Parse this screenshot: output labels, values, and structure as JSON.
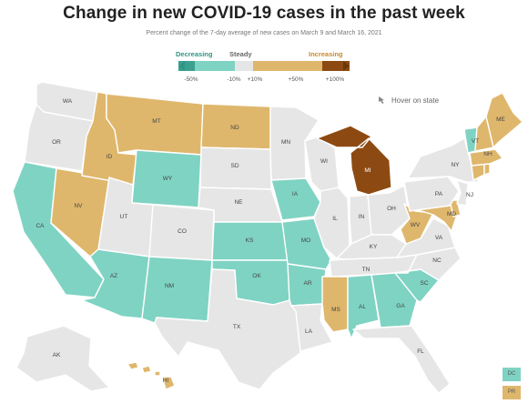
{
  "title": "Change in new COVID-19 cases in the past week",
  "subtitle": "Percent change of the 7-day average of new cases on March 9 and March 16, 2021",
  "legend": {
    "decreasing_label": "Decreasing",
    "steady_label": "Steady",
    "increasing_label": "Increasing",
    "ticks": [
      "-50%",
      "-10%",
      "+10%",
      "+50%",
      "+100%"
    ],
    "colors": {
      "strong_decrease": "#3aa191",
      "decrease": "#7fd3c3",
      "steady": "#e6e6e6",
      "increase": "#dfb76c",
      "strong_increase": "#8c4a12"
    }
  },
  "hover_note": "Hover on state",
  "hover_icon": "cursor-hand-icon",
  "colors": {
    "decrease": "#7fd3c3",
    "steady": "#e6e6e6",
    "increase": "#dfb76c",
    "strong_increase": "#8c4a12"
  },
  "states": {
    "WA": "steady",
    "OR": "steady",
    "CA": "decrease",
    "NV": "increase",
    "ID": "increase",
    "MT": "increase",
    "WY": "decrease",
    "UT": "steady",
    "AZ": "decrease",
    "CO": "steady",
    "NM": "decrease",
    "ND": "increase",
    "SD": "steady",
    "NE": "steady",
    "KS": "decrease",
    "OK": "decrease",
    "TX": "steady",
    "MN": "steady",
    "IA": "decrease",
    "MO": "decrease",
    "AR": "decrease",
    "LA": "steady",
    "WI": "steady",
    "IL": "steady",
    "MI": "strong_increase",
    "IN": "steady",
    "OH": "steady",
    "KY": "steady",
    "TN": "steady",
    "MS": "increase",
    "AL": "decrease",
    "GA": "decrease",
    "FL": "steady",
    "SC": "decrease",
    "NC": "steady",
    "VA": "steady",
    "WV": "increase",
    "MD": "increase",
    "DE": "increase",
    "PA": "steady",
    "NJ": "steady",
    "NY": "steady",
    "CT": "increase",
    "RI": "increase",
    "MA": "increase",
    "VT": "decrease",
    "NH": "increase",
    "ME": "increase",
    "AK": "steady",
    "HI": "increase",
    "DC": "decrease",
    "PR": "increase"
  },
  "labels": {
    "WA": "WA",
    "OR": "OR",
    "CA": "CA",
    "NV": "NV",
    "ID": "ID",
    "MT": "MT",
    "WY": "WY",
    "UT": "UT",
    "AZ": "AZ",
    "CO": "CO",
    "NM": "NM",
    "ND": "ND",
    "SD": "SD",
    "NE": "NE",
    "KS": "KS",
    "OK": "OK",
    "TX": "TX",
    "MN": "MN",
    "IA": "IA",
    "MO": "MO",
    "AR": "AR",
    "LA": "LA",
    "WI": "WI",
    "IL": "IL",
    "MI": "MI",
    "IN": "IN",
    "OH": "OH",
    "KY": "KY",
    "TN": "TN",
    "MS": "MS",
    "AL": "AL",
    "GA": "GA",
    "FL": "FL",
    "SC": "SC",
    "NC": "NC",
    "VA": "VA",
    "WV": "WV",
    "MD": "MD",
    "PA": "PA",
    "NJ": "NJ",
    "NY": "NY",
    "VT": "VT",
    "NH": "NH",
    "ME": "ME",
    "AK": "AK",
    "HI": "HI",
    "DC": "DC",
    "PR": "PR"
  }
}
